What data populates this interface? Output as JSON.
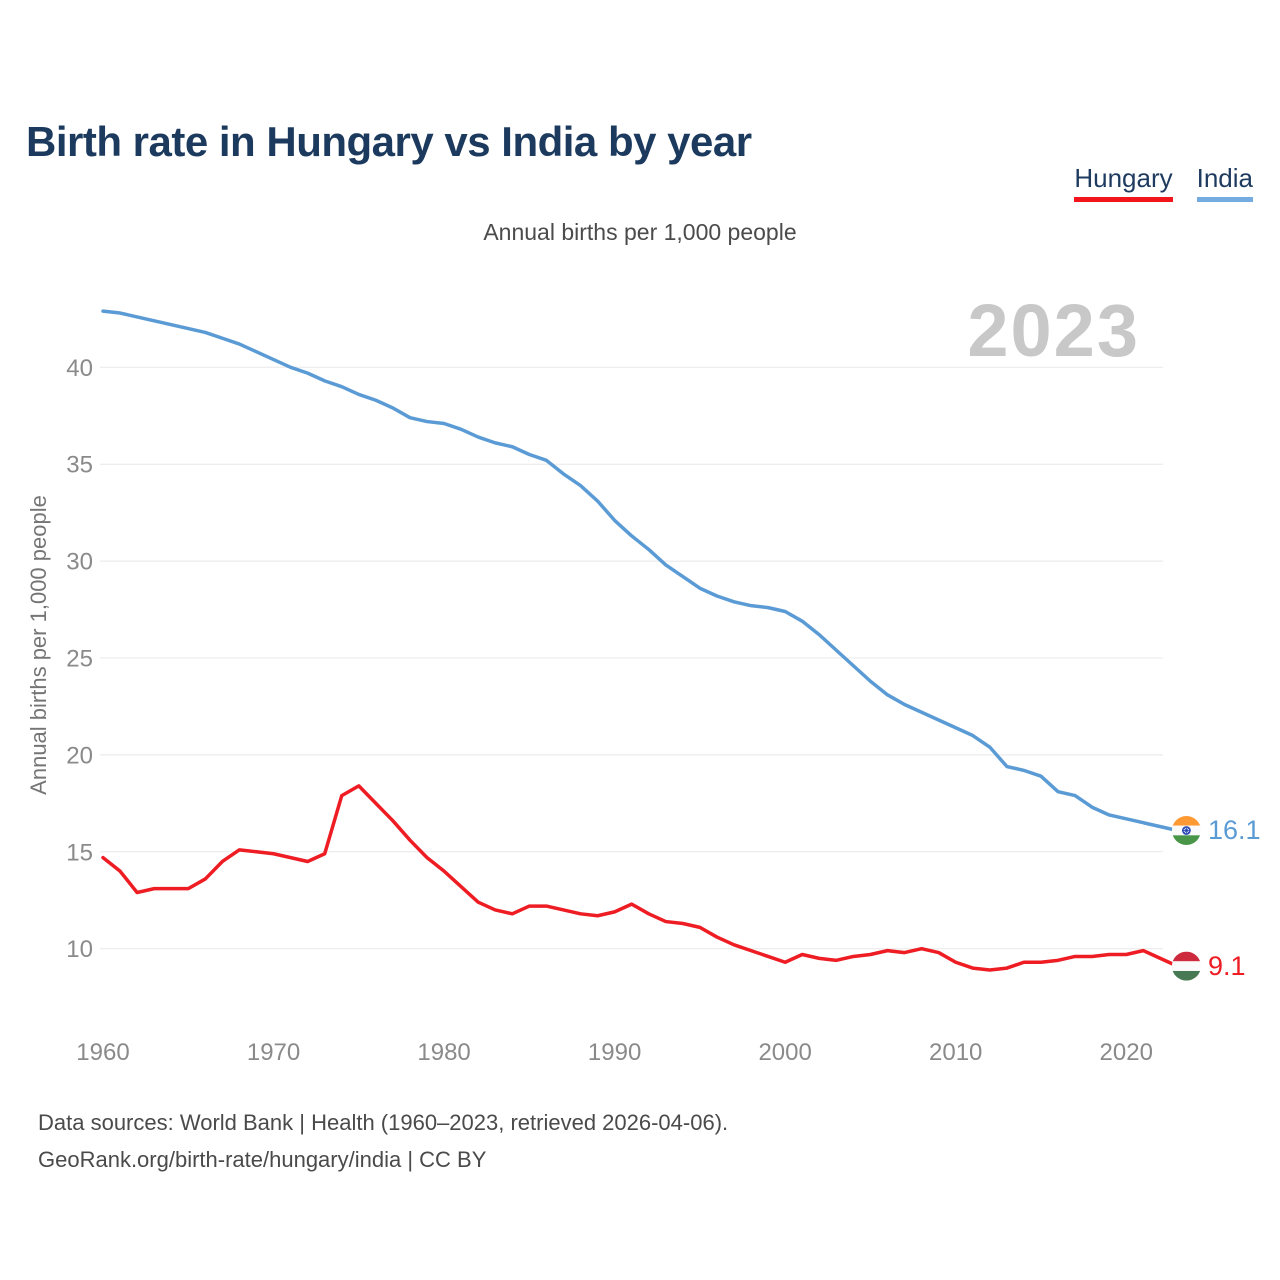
{
  "page": {
    "title": "Birth rate in Hungary vs India by year"
  },
  "legend": {
    "items": [
      {
        "label": "Hungary",
        "color": "#f2151c"
      },
      {
        "label": "India",
        "color": "#74abe0"
      }
    ]
  },
  "watermark_year": "2023",
  "chart_data": {
    "type": "line",
    "title": "Annual births per 1,000 people",
    "xlabel": "",
    "ylabel": "Annual births per 1,000 people",
    "grid": true,
    "legend_position": "top-right",
    "ylim": [
      8.5,
      44
    ],
    "yticks": [
      10,
      15,
      20,
      25,
      30,
      35,
      40
    ],
    "xticks": [
      1960,
      1970,
      1980,
      1990,
      2000,
      2010,
      2020
    ],
    "x": [
      1960,
      1961,
      1962,
      1963,
      1964,
      1965,
      1966,
      1967,
      1968,
      1969,
      1970,
      1971,
      1972,
      1973,
      1974,
      1975,
      1976,
      1977,
      1978,
      1979,
      1980,
      1981,
      1982,
      1983,
      1984,
      1985,
      1986,
      1987,
      1988,
      1989,
      1990,
      1991,
      1992,
      1993,
      1994,
      1995,
      1996,
      1997,
      1998,
      1999,
      2000,
      2001,
      2002,
      2003,
      2004,
      2005,
      2006,
      2007,
      2008,
      2009,
      2010,
      2011,
      2012,
      2013,
      2014,
      2015,
      2016,
      2017,
      2018,
      2019,
      2020,
      2021,
      2022,
      2023
    ],
    "series": [
      {
        "name": "Hungary",
        "color": "#ee1c23",
        "end_label": "9.1",
        "end_year": 2023,
        "flag": "hungary",
        "values": [
          14.7,
          14.0,
          12.9,
          13.1,
          13.1,
          13.1,
          13.6,
          14.5,
          15.1,
          15.0,
          14.9,
          14.7,
          14.5,
          14.9,
          17.9,
          18.4,
          17.5,
          16.6,
          15.6,
          14.7,
          14.0,
          13.2,
          12.4,
          12.0,
          11.8,
          12.2,
          12.2,
          12.0,
          11.8,
          11.7,
          11.9,
          12.3,
          11.8,
          11.4,
          11.3,
          11.1,
          10.6,
          10.2,
          9.9,
          9.6,
          9.3,
          9.7,
          9.5,
          9.4,
          9.6,
          9.7,
          9.9,
          9.8,
          10.0,
          9.8,
          9.3,
          9.0,
          8.9,
          9.0,
          9.3,
          9.3,
          9.4,
          9.6,
          9.6,
          9.7,
          9.7,
          9.9,
          9.5,
          9.1
        ]
      },
      {
        "name": "India",
        "color": "#5b9bd5",
        "end_label": "16.1",
        "end_year": 2023,
        "flag": "india",
        "values": [
          42.9,
          42.8,
          42.6,
          42.4,
          42.2,
          42.0,
          41.8,
          41.5,
          41.2,
          40.8,
          40.4,
          40.0,
          39.7,
          39.3,
          39.0,
          38.6,
          38.3,
          37.9,
          37.4,
          37.2,
          37.1,
          36.8,
          36.4,
          36.1,
          35.9,
          35.5,
          35.2,
          34.5,
          33.9,
          33.1,
          32.1,
          31.3,
          30.6,
          29.8,
          29.2,
          28.6,
          28.2,
          27.9,
          27.7,
          27.6,
          27.4,
          26.9,
          26.2,
          25.4,
          24.6,
          23.8,
          23.1,
          22.6,
          22.2,
          21.8,
          21.4,
          21.0,
          20.4,
          19.4,
          19.2,
          18.9,
          18.1,
          17.9,
          17.3,
          16.9,
          16.7,
          16.5,
          16.3,
          16.1
        ]
      }
    ],
    "flag_colors": {
      "india": {
        "top": "#ff9933",
        "mid": "#fafafa",
        "bottom": "#4a9648",
        "chakra": "#2a4bb5"
      },
      "hungary": {
        "top": "#cd2a3e",
        "mid": "#fafafa",
        "bottom": "#477a52"
      }
    }
  },
  "footer": {
    "line1": "Data sources: World Bank | Health (1960–2023, retrieved 2026-04-06).",
    "line2": "GeoRank.org/birth-rate/hungary/india | CC BY"
  }
}
